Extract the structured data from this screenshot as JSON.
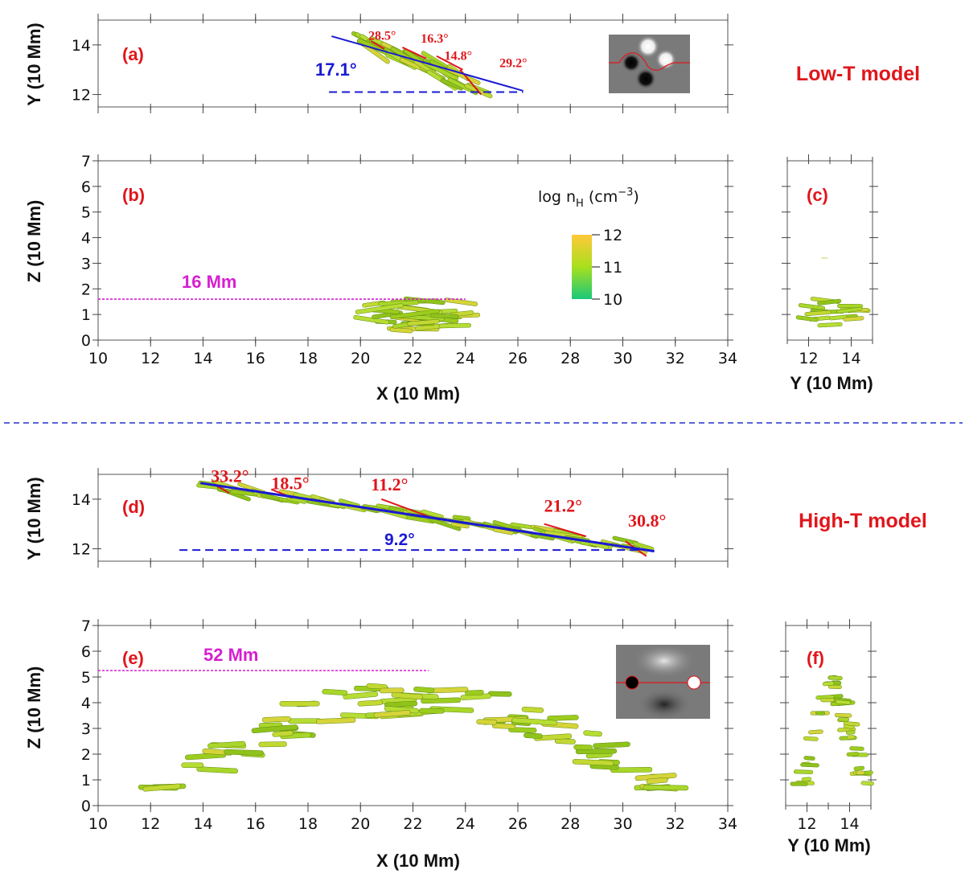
{
  "chart_data": [
    {
      "id": "a",
      "type": "scatter",
      "panel_label": "(a)",
      "model": "Low-T model",
      "xlabel": "",
      "ylabel": "Y (10 Mm)",
      "xlim": [
        10,
        34
      ],
      "ylim": [
        11.5,
        15
      ],
      "yticks": [
        12,
        14
      ],
      "fit_line_angle": "17.1°",
      "local_angles": [
        {
          "text": "28.5°",
          "x": 20.3,
          "y": 14.2
        },
        {
          "text": "16.3°",
          "x": 22.3,
          "y": 14.1
        },
        {
          "text": "14.8°",
          "x": 23.2,
          "y": 13.4
        },
        {
          "text": "29.2°",
          "x": 25.3,
          "y": 13.1
        }
      ],
      "fit_line": {
        "x": [
          18.9,
          26.2
        ],
        "y": [
          14.35,
          12.15
        ]
      },
      "reference_line": {
        "x": [
          18.8,
          26.2
        ],
        "y": [
          12.1,
          12.1
        ]
      }
    },
    {
      "id": "b",
      "type": "scatter",
      "panel_label": "(b)",
      "xlabel": "X (10 Mm)",
      "ylabel": "Z (10 Mm)",
      "xlim": [
        10,
        34
      ],
      "ylim": [
        0,
        7
      ],
      "xticks": [
        10,
        12,
        14,
        16,
        18,
        20,
        22,
        24,
        26,
        28,
        30,
        32,
        34
      ],
      "yticks": [
        0,
        1,
        2,
        3,
        4,
        5,
        6,
        7
      ],
      "height_label": "16 Mm",
      "height_line": {
        "x": [
          10,
          24
        ],
        "z": 1.6
      },
      "colorbar": {
        "title": "log n",
        "title_sub": "H",
        "title_unit": " (cm",
        "title_exp": "−3",
        "title_close": ")",
        "ticks": [
          "12",
          "11",
          "10"
        ],
        "range": [
          10,
          12
        ]
      }
    },
    {
      "id": "c",
      "type": "scatter",
      "panel_label": "(c)",
      "xlabel": "Y (10 Mm)",
      "xlim": [
        11,
        15
      ],
      "ylim": [
        0,
        7
      ],
      "xticks": [
        12,
        14
      ]
    },
    {
      "id": "d",
      "type": "scatter",
      "panel_label": "(d)",
      "model": "High-T model",
      "xlabel": "",
      "ylabel": "Y (10 Mm)",
      "xlim": [
        10,
        34
      ],
      "ylim": [
        11.5,
        15
      ],
      "yticks": [
        12,
        14
      ],
      "fit_line_angle": "9.2°",
      "local_angles": [
        {
          "text": "33.2°",
          "x": 14.3,
          "y": 14.7
        },
        {
          "text": "18.5°",
          "x": 16.6,
          "y": 14.4
        },
        {
          "text": "11.2°",
          "x": 20.4,
          "y": 14.35
        },
        {
          "text": "21.2°",
          "x": 27.0,
          "y": 13.5
        },
        {
          "text": "30.8°",
          "x": 30.2,
          "y": 12.9
        }
      ],
      "fit_line": {
        "x": [
          13.9,
          31.2
        ],
        "y": [
          14.65,
          11.9
        ]
      },
      "reference_line": {
        "x": [
          13.1,
          31.0
        ],
        "y": [
          11.95,
          11.95
        ]
      }
    },
    {
      "id": "e",
      "type": "scatter",
      "panel_label": "(e)",
      "xlabel": "X (10 Mm)",
      "ylabel": "Z (10 Mm)",
      "xlim": [
        10,
        34
      ],
      "ylim": [
        0,
        7
      ],
      "xticks": [
        10,
        12,
        14,
        16,
        18,
        20,
        22,
        24,
        26,
        28,
        30,
        32,
        34
      ],
      "yticks": [
        0,
        1,
        2,
        3,
        4,
        5,
        6,
        7
      ],
      "height_label": "52 Mm",
      "height_line": {
        "x": [
          10,
          22.6
        ],
        "z": 5.25
      }
    },
    {
      "id": "f",
      "type": "scatter",
      "panel_label": "(f)",
      "xlabel": "Y (10 Mm)",
      "xlim": [
        11,
        15
      ],
      "ylim": [
        0,
        7
      ],
      "xticks": [
        12,
        14
      ]
    }
  ],
  "colors": {
    "label_red": "#e0161b",
    "fit_blue": "#1a1ad4",
    "height_magenta": "#d61fd0",
    "tube_green": "#9ccc1e",
    "tube_yellow": "#f0d828",
    "divider_blue": "#2233cc"
  }
}
